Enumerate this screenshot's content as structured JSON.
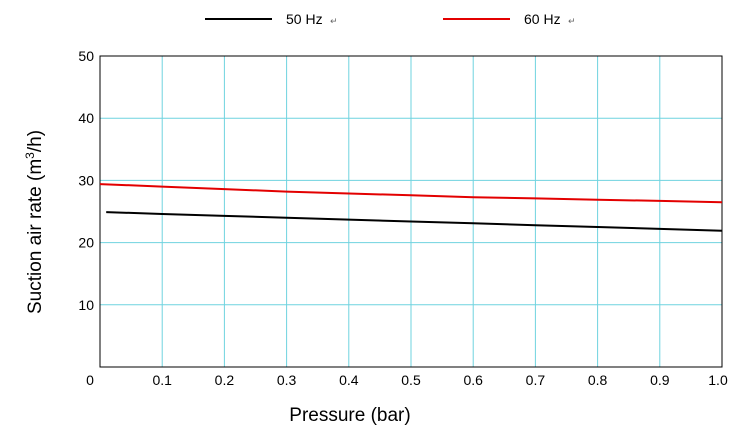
{
  "chart_data": {
    "type": "line",
    "xlabel": "Pressure (bar)",
    "ylabel_main": "Suction air rate (m",
    "ylabel_sup": "3",
    "ylabel_end": "/h)",
    "xlim": [
      0,
      1.0
    ],
    "ylim": [
      0,
      50
    ],
    "x_ticks": [
      "0",
      "0.1",
      "0.2",
      "0.3",
      "0.4",
      "0.5",
      "0.6",
      "0.7",
      "0.8",
      "0.9",
      "1.0"
    ],
    "y_ticks": [
      "10",
      "20",
      "30",
      "40",
      "50"
    ],
    "grid": true,
    "legend_position": "top",
    "series": [
      {
        "name": "50 Hz",
        "color": "#000000",
        "x": [
          0.01,
          0.1,
          0.2,
          0.3,
          0.4,
          0.5,
          0.6,
          0.7,
          0.8,
          0.9,
          1.0
        ],
        "y": [
          24.9,
          24.6,
          24.3,
          24.0,
          23.7,
          23.4,
          23.1,
          22.8,
          22.5,
          22.2,
          21.9
        ]
      },
      {
        "name": "60 Hz",
        "color": "#e30000",
        "x": [
          0.0,
          0.1,
          0.2,
          0.3,
          0.4,
          0.5,
          0.6,
          0.7,
          0.8,
          0.9,
          1.0
        ],
        "y": [
          29.4,
          29.0,
          28.6,
          28.2,
          27.9,
          27.6,
          27.3,
          27.1,
          26.9,
          26.7,
          26.5
        ]
      }
    ],
    "grid_color": "#6fd3df",
    "legend_mark": "↵"
  }
}
